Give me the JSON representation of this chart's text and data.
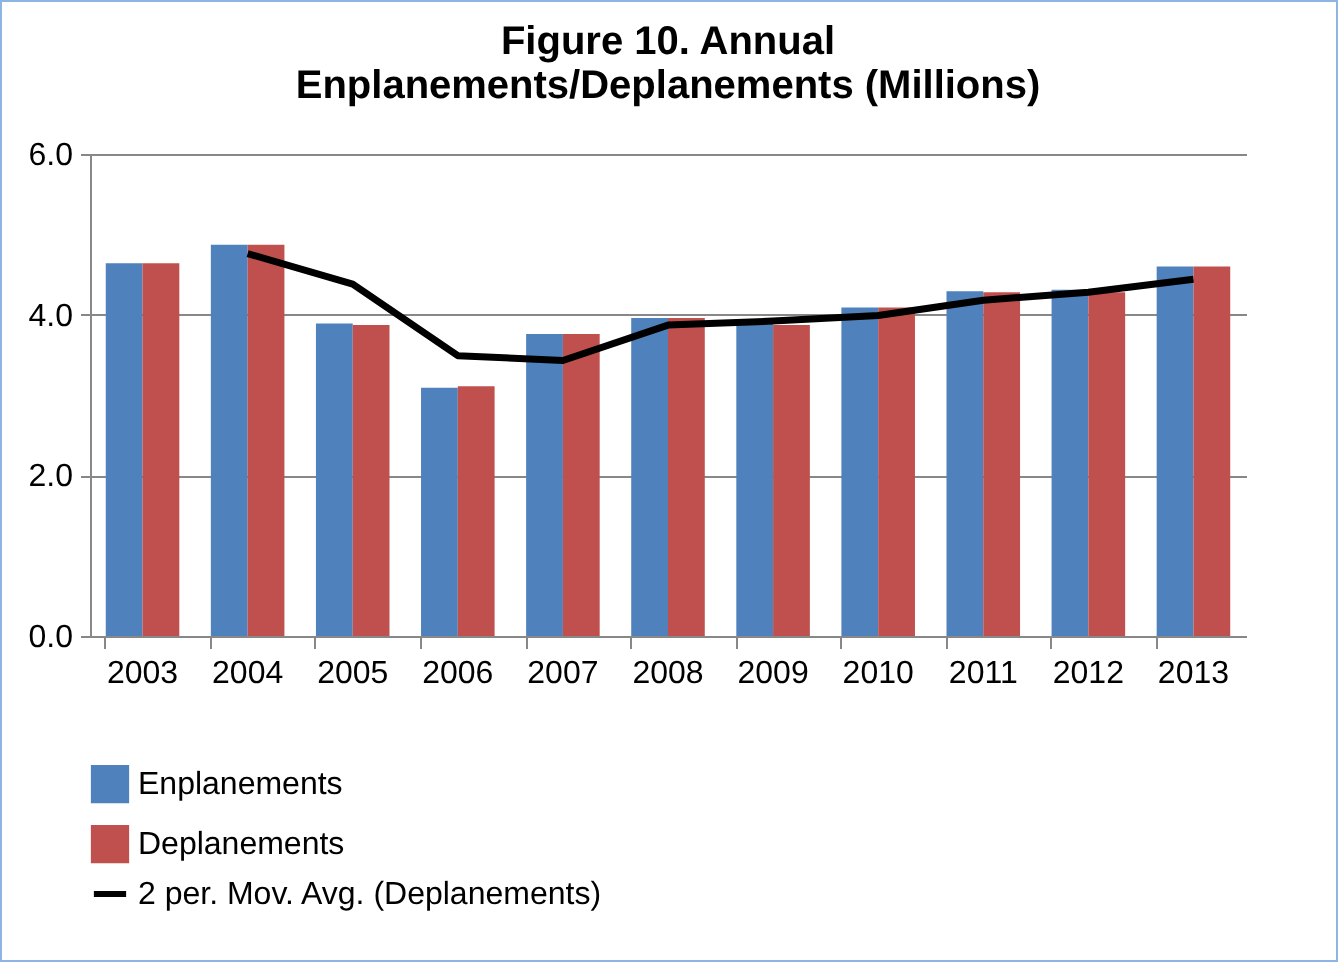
{
  "chart_data": {
    "type": "bar",
    "title": [
      "Figure 10. Annual",
      "Enplanements/Deplanements (Millions)"
    ],
    "categories": [
      "2003",
      "2004",
      "2005",
      "2006",
      "2007",
      "2008",
      "2009",
      "2010",
      "2011",
      "2012",
      "2013"
    ],
    "series": [
      {
        "name": "Enplanements",
        "color": "#4f81bd",
        "values": [
          4.64,
          4.87,
          3.89,
          3.09,
          3.76,
          3.96,
          3.91,
          4.09,
          4.29,
          4.31,
          4.6
        ]
      },
      {
        "name": "Deplanements",
        "color": "#c0504d",
        "values": [
          4.64,
          4.87,
          3.87,
          3.11,
          3.76,
          3.96,
          3.87,
          4.09,
          4.28,
          4.28,
          4.6
        ]
      },
      {
        "name": "2 per. Mov. Avg. (Deplanements)",
        "type": "line",
        "color": "#000000",
        "values": [
          null,
          4.76,
          4.38,
          3.49,
          3.43,
          3.87,
          3.92,
          3.99,
          4.18,
          4.28,
          4.44
        ]
      }
    ],
    "ylim": [
      0,
      6
    ],
    "yticks": [
      {
        "value": 0,
        "label": "0.0"
      },
      {
        "value": 2,
        "label": "2.0"
      },
      {
        "value": 4,
        "label": "4.0"
      },
      {
        "value": 6,
        "label": "6.0"
      }
    ],
    "grid": "y",
    "legend": "bottom",
    "marker": "none",
    "line_style": "solid"
  }
}
